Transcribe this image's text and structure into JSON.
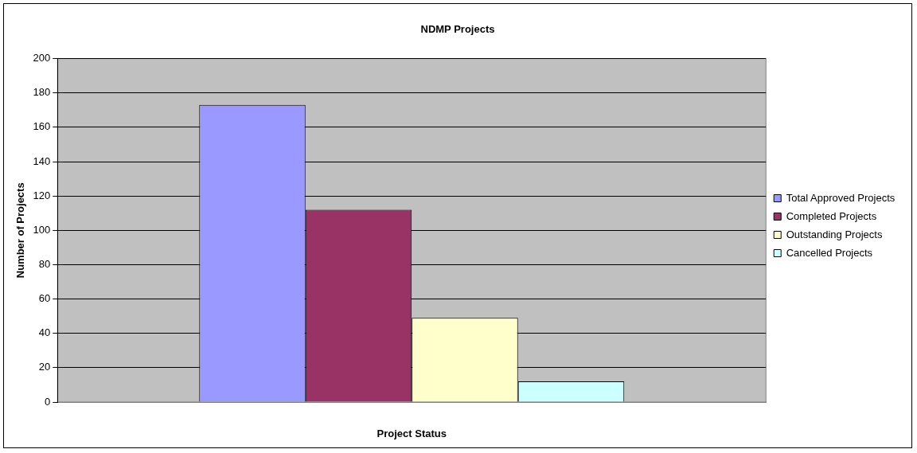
{
  "chart_data": {
    "type": "bar",
    "title": "NDMP Projects",
    "xlabel": "Project Status",
    "ylabel": "Number of Projects",
    "categories": [
      null
    ],
    "series": [
      {
        "name": "Total Approved Projects",
        "color": "#9999ff",
        "values": [
          173
        ]
      },
      {
        "name": "Completed Projects",
        "color": "#993366",
        "values": [
          112
        ]
      },
      {
        "name": "Outstanding Projects",
        "color": "#ffffcc",
        "values": [
          49
        ]
      },
      {
        "name": "Cancelled Projects",
        "color": "#ccffff",
        "values": [
          12
        ]
      }
    ],
    "ylim": [
      0,
      200
    ],
    "yticks": [
      0,
      20,
      40,
      60,
      80,
      100,
      120,
      140,
      160,
      180,
      200
    ],
    "grid": "y",
    "legend": "right"
  }
}
